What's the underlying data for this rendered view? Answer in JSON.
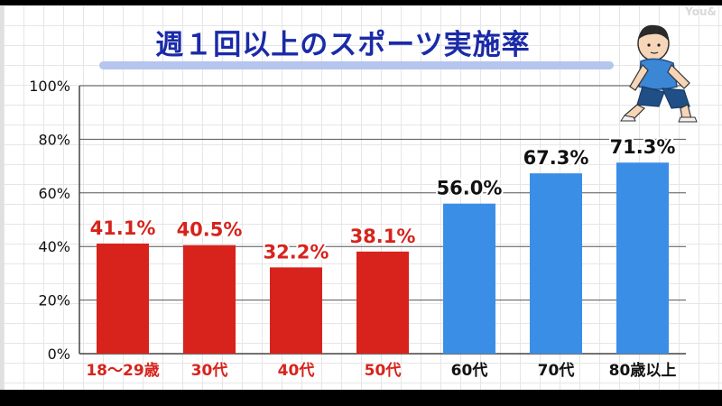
{
  "title": "週１回以上のスポーツ実施率",
  "watermark": "You&",
  "colors": {
    "young": "#d7231c",
    "old": "#3a8ee6",
    "title": "#1a2aa8"
  },
  "chart_data": {
    "type": "bar",
    "title": "週１回以上のスポーツ実施率",
    "categories": [
      "18～29歳",
      "30代",
      "40代",
      "50代",
      "60代",
      "70代",
      "80歳以上"
    ],
    "values": [
      41.1,
      40.5,
      32.2,
      38.1,
      56.0,
      67.3,
      71.3
    ],
    "value_labels": [
      "41.1%",
      "40.5%",
      "32.2%",
      "38.1%",
      "56.0%",
      "67.3%",
      "71.3%"
    ],
    "bar_colors": [
      "#d7231c",
      "#d7231c",
      "#d7231c",
      "#d7231c",
      "#3a8ee6",
      "#3a8ee6",
      "#3a8ee6"
    ],
    "yticks": [
      0,
      20,
      40,
      60,
      80,
      100
    ],
    "ytick_labels": [
      "0%",
      "20%",
      "40%",
      "60%",
      "80%",
      "100%"
    ],
    "ylim": [
      0,
      100
    ],
    "xlabel": "",
    "ylabel": "",
    "grid": true
  }
}
